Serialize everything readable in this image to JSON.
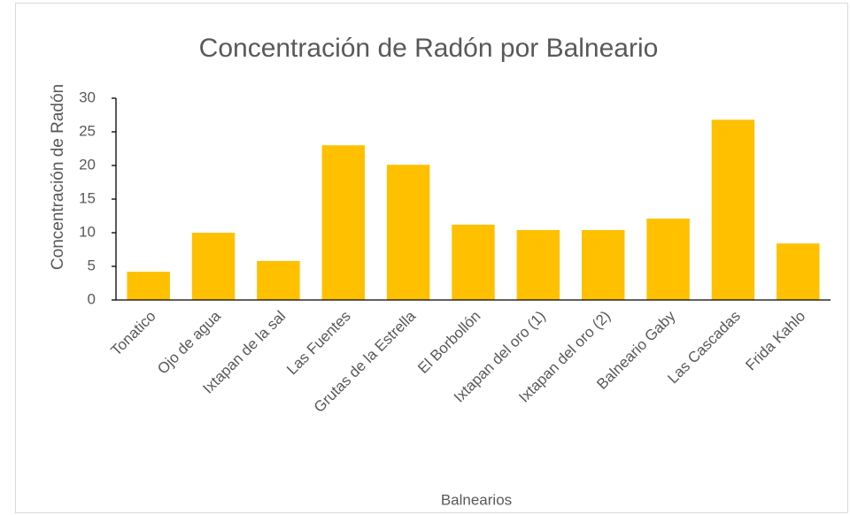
{
  "chart_data": {
    "type": "bar",
    "title": "Concentración de Radón por Balneario",
    "x_label": "Balnearios",
    "y_label": "Concentración de Radón",
    "categories": [
      "Tonatico",
      "Ojo de agua",
      "Ixtapan de la sal",
      "Las Fuentes",
      "Grutas de la Estrella",
      "El Borbollón",
      "Ixtapan del oro (1)",
      "Ixtapan del oro (2)",
      "Balneario Gaby",
      "Las Cascadas",
      "Frida Kahlo"
    ],
    "values": [
      4.2,
      10.0,
      5.8,
      23.0,
      20.1,
      11.2,
      10.4,
      10.4,
      12.1,
      26.8,
      8.4
    ],
    "color": "#ffc000",
    "ylim": [
      0,
      30
    ],
    "yticks": [
      0,
      5,
      10,
      15,
      20,
      25,
      30
    ],
    "grid": false
  }
}
